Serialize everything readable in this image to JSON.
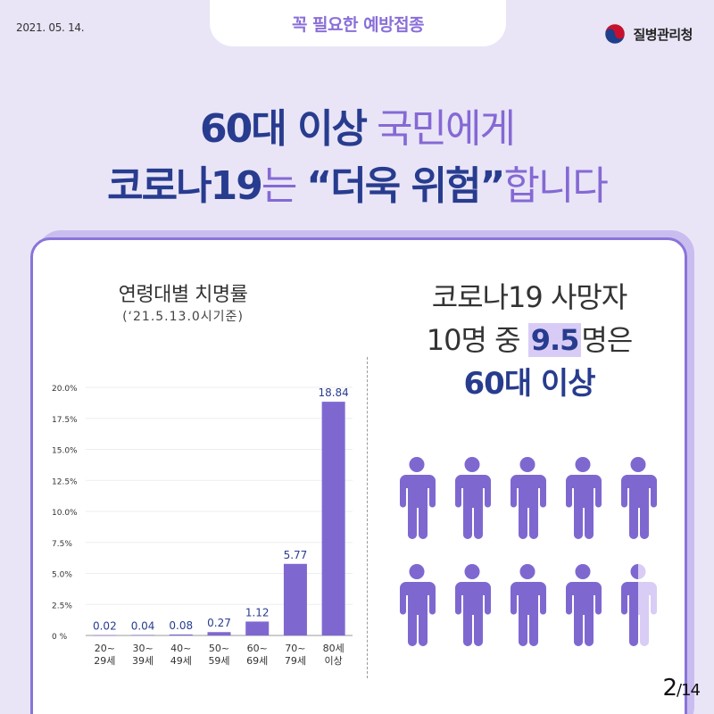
{
  "header": {
    "date": "2021. 05. 14.",
    "pill": "꼭 필요한 예방접종",
    "org": "질병관리청",
    "logo_icon": "government-taegeuk-logo"
  },
  "headline": {
    "l1_a": "60대 이상",
    "l1_b": " 국민에게",
    "l2_a": "코로나19",
    "l2_b": "는 ",
    "l2_c": "“더욱 위험”",
    "l2_d": "합니다"
  },
  "right": {
    "line1": "코로나19 사망자",
    "line2_a": "10명 중 ",
    "line2_b": "9.5",
    "line2_c": "명은",
    "line3": "60대 이상"
  },
  "people": {
    "total": 10,
    "filled": 9.5,
    "icon": "person-icon",
    "fill_color": "#7e68d0",
    "partial_color": "#d9cdf6"
  },
  "page": {
    "current": "2",
    "total": "/14"
  },
  "chart_data": {
    "type": "bar",
    "title": "연령대별 치명률",
    "subtitle": "(‘21.5.13.0시기준)",
    "categories": [
      [
        "20~",
        "29세"
      ],
      [
        "30~",
        "39세"
      ],
      [
        "40~",
        "49세"
      ],
      [
        "50~",
        "59세"
      ],
      [
        "60~",
        "69세"
      ],
      [
        "70~",
        "79세"
      ],
      [
        "80세",
        "이상"
      ]
    ],
    "values": [
      0.02,
      0.04,
      0.08,
      0.27,
      1.12,
      5.77,
      18.84
    ],
    "value_labels": [
      "0.02",
      "0.04",
      "0.08",
      "0.27",
      "1.12",
      "5.77",
      "18.84"
    ],
    "yticks": [
      "0 %",
      "2.5%",
      "5.0%",
      "7.5%",
      "10.0%",
      "12.5%",
      "15.0%",
      "17.5%",
      "20.0%"
    ],
    "ylim": [
      0,
      20
    ],
    "bar_color": "#7e68d0",
    "grid": true
  }
}
